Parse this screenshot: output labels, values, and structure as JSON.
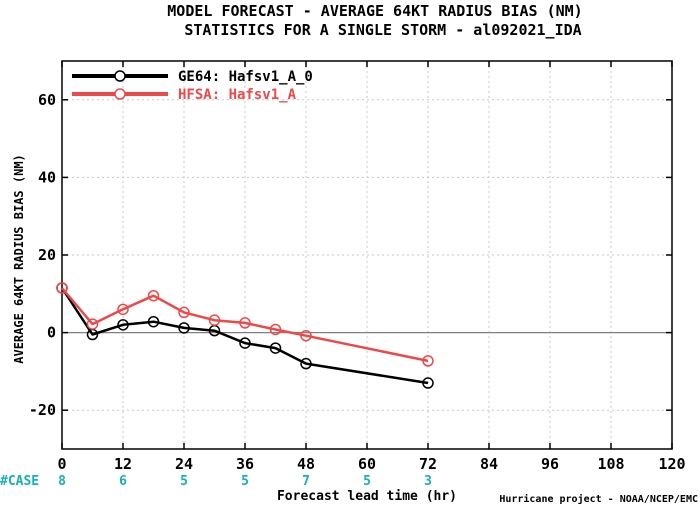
{
  "title_line1": "MODEL FORECAST - AVERAGE 64KT RADIUS BIAS (NM)",
  "title_line2": "STATISTICS FOR A SINGLE STORM - al092021_IDA",
  "credit": "Hurricane project - NOAA/NCEP/EMC",
  "case_label": "#CASE",
  "case_counts": [
    {
      "x": 0,
      "n": "8"
    },
    {
      "x": 12,
      "n": "6"
    },
    {
      "x": 24,
      "n": "5"
    },
    {
      "x": 36,
      "n": "5"
    },
    {
      "x": 48,
      "n": "7"
    },
    {
      "x": 60,
      "n": "5"
    },
    {
      "x": 72,
      "n": "3"
    }
  ],
  "colors": {
    "case": "#16b0b8",
    "zero_line": "#808080",
    "grid": "#c8c8c8"
  },
  "chart_data": {
    "type": "line",
    "xlabel": "Forecast lead time (hr)",
    "ylabel": "AVERAGE 64KT RADIUS BIAS (NM)",
    "xlim": [
      0,
      120
    ],
    "ylim": [
      -30,
      70
    ],
    "xticks": [
      0,
      12,
      24,
      36,
      48,
      60,
      72,
      84,
      96,
      108,
      120
    ],
    "yticks": [
      -20,
      0,
      20,
      40,
      60
    ],
    "grid": true,
    "zero_line": true,
    "legend_position": "top-left",
    "series": [
      {
        "name": "GE64: Hafsv1_A_0",
        "color": "#000000",
        "x": [
          0,
          6,
          12,
          18,
          24,
          30,
          36,
          42,
          48,
          72
        ],
        "y": [
          11.5,
          -0.5,
          2.0,
          2.8,
          1.2,
          0.5,
          -2.7,
          -4.0,
          -8.0,
          -13.0
        ]
      },
      {
        "name": "HFSA: Hafsv1_A",
        "color": "#f04848",
        "x": [
          0,
          6,
          12,
          18,
          24,
          30,
          36,
          42,
          48,
          72
        ],
        "y": [
          11.5,
          2.2,
          6.0,
          9.5,
          5.2,
          3.2,
          2.5,
          0.8,
          -0.8,
          -7.3
        ]
      }
    ]
  }
}
